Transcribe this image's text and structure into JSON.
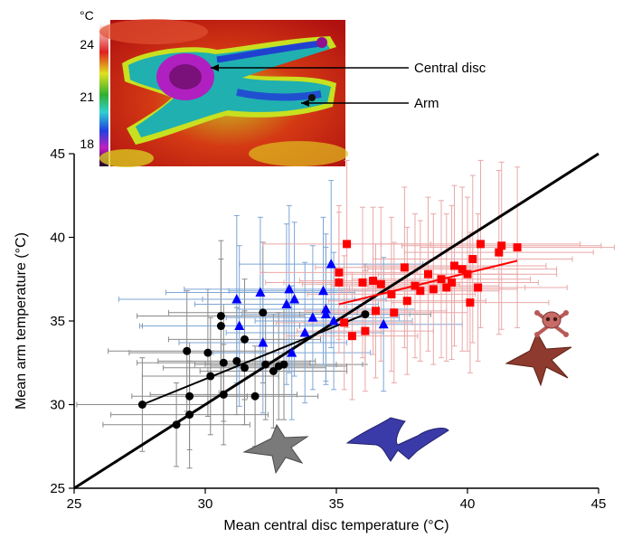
{
  "chart_data": {
    "type": "scatter",
    "xlabel": "Mean central disc temperature (°C)",
    "ylabel": "Mean arm temperature (°C)",
    "xlim": [
      25,
      45
    ],
    "ylim": [
      25,
      45
    ],
    "x_ticks": [
      "25",
      "30",
      "35",
      "40",
      "45"
    ],
    "y_ticks": [
      "25",
      "30",
      "35",
      "40",
      "45"
    ],
    "grid": false,
    "identity_line": {
      "x": [
        25,
        45
      ],
      "y": [
        25,
        45
      ],
      "color": "#000000"
    },
    "series": [
      {
        "marker": "circle",
        "color": "#000000",
        "errorbar_color": "#8a8a8a",
        "trend": {
          "x": [
            27.6,
            36.1
          ],
          "y": [
            30.0,
            35.4
          ],
          "color": "#000000"
        },
        "points": [
          {
            "x": 27.6,
            "y": 30.0,
            "ex": 2.5,
            "ey": 2.8
          },
          {
            "x": 28.9,
            "y": 28.8,
            "ex": 2.8,
            "ey": 2.5
          },
          {
            "x": 29.3,
            "y": 33.2,
            "ex": 3.0,
            "ey": 3.6
          },
          {
            "x": 29.4,
            "y": 30.5,
            "ex": 2.2,
            "ey": 3.2
          },
          {
            "x": 29.4,
            "y": 29.4,
            "ex": 3.0,
            "ey": 3.2
          },
          {
            "x": 30.1,
            "y": 33.1,
            "ex": 3.0,
            "ey": 3.8
          },
          {
            "x": 30.2,
            "y": 31.7,
            "ex": 2.6,
            "ey": 3.5
          },
          {
            "x": 30.6,
            "y": 35.3,
            "ex": 3.2,
            "ey": 4.5
          },
          {
            "x": 30.6,
            "y": 34.7,
            "ex": 3.0,
            "ey": 4.0
          },
          {
            "x": 30.7,
            "y": 32.5,
            "ex": 3.3,
            "ey": 3.5
          },
          {
            "x": 30.7,
            "y": 30.6,
            "ex": 2.8,
            "ey": 3.0
          },
          {
            "x": 31.2,
            "y": 32.6,
            "ex": 3.0,
            "ey": 3.2
          },
          {
            "x": 31.5,
            "y": 32.2,
            "ex": 3.1,
            "ey": 3.4
          },
          {
            "x": 31.5,
            "y": 33.9,
            "ex": 2.9,
            "ey": 3.6
          },
          {
            "x": 31.9,
            "y": 30.5,
            "ex": 2.4,
            "ey": 3.0
          },
          {
            "x": 32.2,
            "y": 35.5,
            "ex": 3.6,
            "ey": 4.2
          },
          {
            "x": 32.3,
            "y": 32.4,
            "ex": 2.7,
            "ey": 3.3
          },
          {
            "x": 32.6,
            "y": 32.0,
            "ex": 2.8,
            "ey": 3.4
          },
          {
            "x": 32.8,
            "y": 32.3,
            "ex": 2.6,
            "ey": 3.2
          },
          {
            "x": 33.0,
            "y": 32.4,
            "ex": 3.0,
            "ey": 3.3
          },
          {
            "x": 36.1,
            "y": 35.4,
            "ex": 2.5,
            "ey": 3.0
          }
        ]
      },
      {
        "marker": "triangle",
        "color": "#0000ff",
        "errorbar_color": "#7ea6d6",
        "points": [
          {
            "x": 31.2,
            "y": 36.3,
            "ex": 4.5,
            "ey": 5.0
          },
          {
            "x": 31.3,
            "y": 34.7,
            "ex": 3.8,
            "ey": 4.8
          },
          {
            "x": 32.1,
            "y": 36.7,
            "ex": 3.6,
            "ey": 4.5
          },
          {
            "x": 32.2,
            "y": 33.7,
            "ex": 3.2,
            "ey": 4.2
          },
          {
            "x": 33.1,
            "y": 36.0,
            "ex": 3.5,
            "ey": 4.8
          },
          {
            "x": 33.2,
            "y": 36.9,
            "ex": 4.0,
            "ey": 5.0
          },
          {
            "x": 33.3,
            "y": 33.1,
            "ex": 3.0,
            "ey": 4.0
          },
          {
            "x": 33.4,
            "y": 36.3,
            "ex": 3.5,
            "ey": 4.6
          },
          {
            "x": 33.8,
            "y": 34.3,
            "ex": 3.0,
            "ey": 4.2
          },
          {
            "x": 34.1,
            "y": 35.2,
            "ex": 3.3,
            "ey": 4.3
          },
          {
            "x": 34.5,
            "y": 36.8,
            "ex": 3.6,
            "ey": 4.4
          },
          {
            "x": 34.6,
            "y": 35.4,
            "ex": 3.2,
            "ey": 4.0
          },
          {
            "x": 34.6,
            "y": 35.7,
            "ex": 3.4,
            "ey": 4.5
          },
          {
            "x": 34.8,
            "y": 38.4,
            "ex": 3.5,
            "ey": 5.0
          },
          {
            "x": 34.9,
            "y": 35.0,
            "ex": 3.0,
            "ey": 4.1
          },
          {
            "x": 36.8,
            "y": 34.8,
            "ex": 3.0,
            "ey": 4.0
          }
        ]
      },
      {
        "marker": "square",
        "color": "#ff0000",
        "errorbar_color": "#e9a8a8",
        "trend": {
          "x": [
            35.1,
            41.9
          ],
          "y": [
            36.0,
            38.6
          ],
          "color": "#ff0000"
        },
        "points": [
          {
            "x": 35.1,
            "y": 37.9,
            "ex": 3.0,
            "ey": 4.0
          },
          {
            "x": 35.1,
            "y": 37.3,
            "ex": 2.8,
            "ey": 4.2
          },
          {
            "x": 35.3,
            "y": 34.9,
            "ex": 2.6,
            "ey": 4.0
          },
          {
            "x": 35.4,
            "y": 39.6,
            "ex": 3.2,
            "ey": 5.0
          },
          {
            "x": 35.6,
            "y": 34.1,
            "ex": 2.5,
            "ey": 3.8
          },
          {
            "x": 36.0,
            "y": 37.3,
            "ex": 3.0,
            "ey": 4.5
          },
          {
            "x": 36.1,
            "y": 34.4,
            "ex": 2.6,
            "ey": 3.6
          },
          {
            "x": 36.4,
            "y": 37.4,
            "ex": 2.8,
            "ey": 4.4
          },
          {
            "x": 36.5,
            "y": 35.6,
            "ex": 2.7,
            "ey": 4.0
          },
          {
            "x": 36.7,
            "y": 37.2,
            "ex": 3.0,
            "ey": 4.6
          },
          {
            "x": 37.1,
            "y": 36.6,
            "ex": 3.2,
            "ey": 4.6
          },
          {
            "x": 37.2,
            "y": 35.5,
            "ex": 2.8,
            "ey": 4.2
          },
          {
            "x": 37.6,
            "y": 38.2,
            "ex": 3.4,
            "ey": 4.8
          },
          {
            "x": 37.7,
            "y": 36.2,
            "ex": 3.0,
            "ey": 4.4
          },
          {
            "x": 38.0,
            "y": 37.1,
            "ex": 3.2,
            "ey": 4.3
          },
          {
            "x": 38.2,
            "y": 36.8,
            "ex": 3.0,
            "ey": 4.2
          },
          {
            "x": 38.5,
            "y": 37.8,
            "ex": 3.4,
            "ey": 4.6
          },
          {
            "x": 38.7,
            "y": 36.9,
            "ex": 3.2,
            "ey": 4.5
          },
          {
            "x": 39.0,
            "y": 37.5,
            "ex": 3.4,
            "ey": 4.7
          },
          {
            "x": 39.2,
            "y": 37.0,
            "ex": 3.0,
            "ey": 4.4
          },
          {
            "x": 39.4,
            "y": 37.3,
            "ex": 3.3,
            "ey": 4.6
          },
          {
            "x": 39.5,
            "y": 38.3,
            "ex": 3.5,
            "ey": 4.8
          },
          {
            "x": 39.8,
            "y": 38.1,
            "ex": 3.6,
            "ey": 4.9
          },
          {
            "x": 40.0,
            "y": 37.8,
            "ex": 3.4,
            "ey": 4.6
          },
          {
            "x": 40.1,
            "y": 36.1,
            "ex": 3.0,
            "ey": 4.2
          },
          {
            "x": 40.2,
            "y": 38.7,
            "ex": 3.8,
            "ey": 5.0
          },
          {
            "x": 40.4,
            "y": 37.0,
            "ex": 3.4,
            "ey": 4.4
          },
          {
            "x": 40.5,
            "y": 39.6,
            "ex": 3.8,
            "ey": 5.0
          },
          {
            "x": 41.2,
            "y": 39.1,
            "ex": 3.6,
            "ey": 4.9
          },
          {
            "x": 41.3,
            "y": 39.5,
            "ex": 3.8,
            "ey": 5.0
          },
          {
            "x": 41.9,
            "y": 39.4,
            "ex": 3.7,
            "ey": 4.8
          }
        ]
      }
    ]
  },
  "inset": {
    "unit": "°C",
    "scale_ticks": [
      "24",
      "21",
      "18"
    ],
    "labels": {
      "central_disc": "Central disc",
      "arm": "Arm"
    }
  },
  "illustrations": [
    {
      "icon": "gray-starfish-icon",
      "color": "#7a7a7a"
    },
    {
      "icon": "blue-starfish-icon",
      "color": "#3a3aa8"
    },
    {
      "icon": "red-starfish-icon",
      "color": "#8e3a2e"
    },
    {
      "icon": "skull-crossbones-icon",
      "color": "#b85a57"
    }
  ]
}
